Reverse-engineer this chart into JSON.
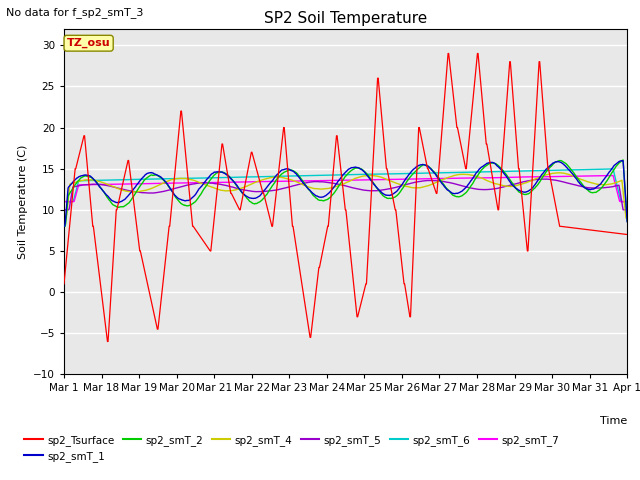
{
  "title": "SP2 Soil Temperature",
  "xlabel": "Time",
  "ylabel": "Soil Temperature (C)",
  "no_data_text": "No data for f_sp2_smT_3",
  "tz_label": "TZ_osu",
  "ylim": [
    -10,
    32
  ],
  "yticks": [
    -10,
    -5,
    0,
    5,
    10,
    15,
    20,
    25,
    30
  ],
  "bg_color": "#e8e8e8",
  "grid_color": "white",
  "series_colors": {
    "sp2_Tsurface": "#ff0000",
    "sp2_smT_1": "#0000cc",
    "sp2_smT_2": "#00cc00",
    "sp2_smT_4": "#cccc00",
    "sp2_smT_5": "#9900cc",
    "sp2_smT_6": "#00cccc",
    "sp2_smT_7": "#ff00ff"
  },
  "date_labels": [
    "Mar 1",
    "Mar 18",
    "Mar 19",
    "Mar 20",
    "Mar 21",
    "Mar 22",
    "Mar 23",
    "Mar 24",
    "Mar 25",
    "Mar 26",
    "Mar 27",
    "Mar 28",
    "Mar 29",
    "Mar 30",
    "Mar 31",
    "Apr 1"
  ],
  "n_points": 960
}
